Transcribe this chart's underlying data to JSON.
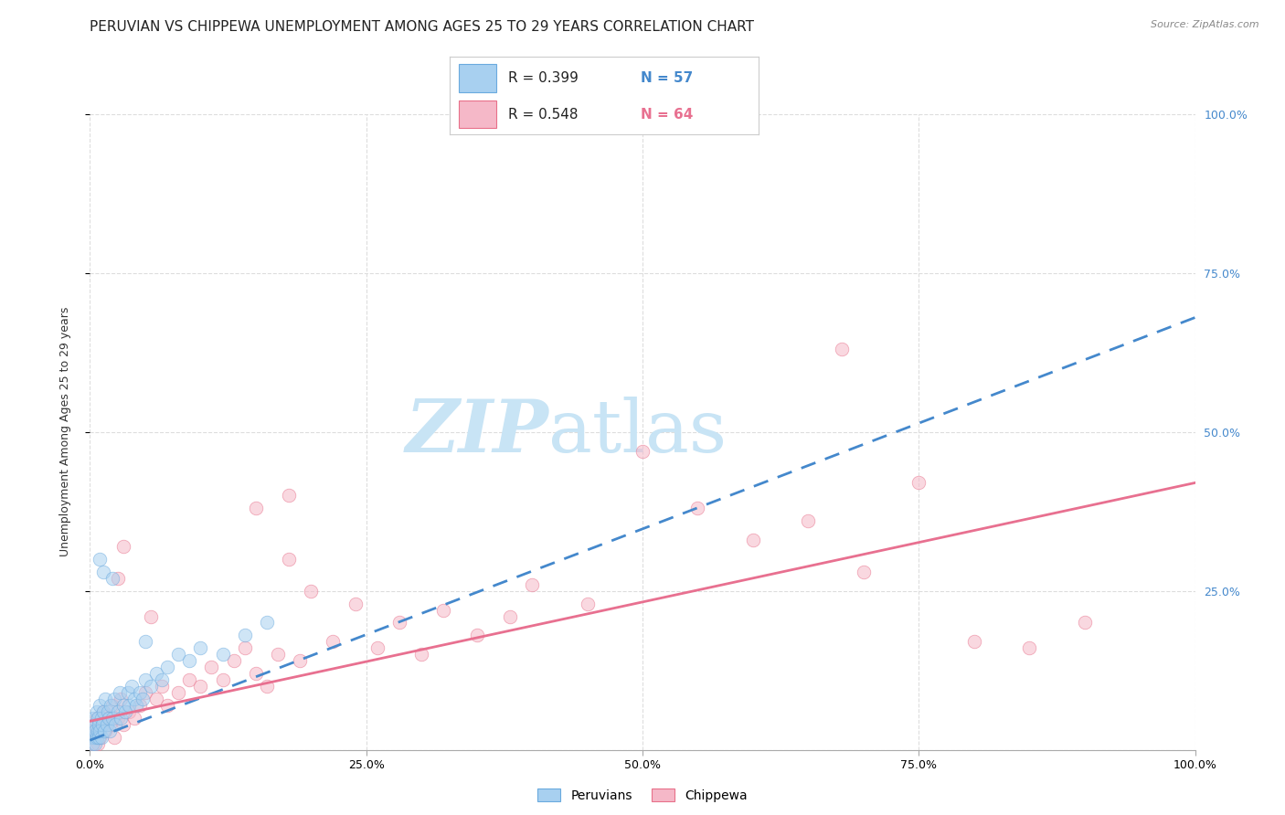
{
  "title": "PERUVIAN VS CHIPPEWA UNEMPLOYMENT AMONG AGES 25 TO 29 YEARS CORRELATION CHART",
  "source": "Source: ZipAtlas.com",
  "ylabel": "Unemployment Among Ages 25 to 29 years",
  "peruvian_color": "#A8D0F0",
  "peruvian_edge_color": "#6AAADE",
  "chippewa_color": "#F5B8C8",
  "chippewa_edge_color": "#E8708A",
  "trend_peruvian_color": "#4488CC",
  "trend_chippewa_color": "#E87090",
  "watermark_color": "#C8E4F5",
  "R_peruvian": 0.399,
  "N_peruvian": 57,
  "R_chippewa": 0.548,
  "N_chippewa": 64,
  "xlim": [
    0,
    1.0
  ],
  "ylim": [
    0,
    1.0
  ],
  "xticks": [
    0.0,
    0.25,
    0.5,
    0.75,
    1.0
  ],
  "yticks": [
    0.0,
    0.25,
    0.5,
    0.75,
    1.0
  ],
  "xticklabels": [
    "0.0%",
    "25.0%",
    "50.0%",
    "75.0%",
    "100.0%"
  ],
  "right_yticklabels": [
    "",
    "25.0%",
    "50.0%",
    "75.0%",
    "100.0%"
  ],
  "background_color": "#FFFFFF",
  "grid_color": "#DDDDDD",
  "title_fontsize": 11,
  "axis_label_fontsize": 9,
  "tick_fontsize": 9,
  "marker_size": 110,
  "marker_alpha": 0.55,
  "peruvian_x": [
    0.001,
    0.002,
    0.003,
    0.003,
    0.004,
    0.004,
    0.005,
    0.005,
    0.006,
    0.006,
    0.007,
    0.007,
    0.008,
    0.008,
    0.009,
    0.009,
    0.01,
    0.01,
    0.011,
    0.012,
    0.013,
    0.014,
    0.015,
    0.016,
    0.017,
    0.018,
    0.019,
    0.02,
    0.022,
    0.023,
    0.025,
    0.027,
    0.028,
    0.03,
    0.032,
    0.034,
    0.035,
    0.038,
    0.04,
    0.042,
    0.045,
    0.048,
    0.05,
    0.055,
    0.06,
    0.065,
    0.07,
    0.08,
    0.09,
    0.1,
    0.12,
    0.14,
    0.16,
    0.009,
    0.012,
    0.02,
    0.05
  ],
  "peruvian_y": [
    0.02,
    0.01,
    0.03,
    0.05,
    0.02,
    0.04,
    0.01,
    0.03,
    0.02,
    0.06,
    0.03,
    0.05,
    0.02,
    0.04,
    0.03,
    0.07,
    0.02,
    0.05,
    0.04,
    0.06,
    0.03,
    0.08,
    0.04,
    0.06,
    0.05,
    0.03,
    0.07,
    0.05,
    0.08,
    0.04,
    0.06,
    0.09,
    0.05,
    0.07,
    0.06,
    0.09,
    0.07,
    0.1,
    0.08,
    0.07,
    0.09,
    0.08,
    0.11,
    0.1,
    0.12,
    0.11,
    0.13,
    0.15,
    0.14,
    0.16,
    0.15,
    0.18,
    0.2,
    0.3,
    0.28,
    0.27,
    0.17
  ],
  "chippewa_x": [
    0.001,
    0.002,
    0.003,
    0.004,
    0.005,
    0.006,
    0.007,
    0.008,
    0.009,
    0.01,
    0.012,
    0.014,
    0.016,
    0.018,
    0.02,
    0.022,
    0.025,
    0.028,
    0.03,
    0.035,
    0.04,
    0.045,
    0.05,
    0.055,
    0.06,
    0.065,
    0.07,
    0.08,
    0.09,
    0.1,
    0.11,
    0.12,
    0.13,
    0.14,
    0.15,
    0.16,
    0.17,
    0.18,
    0.19,
    0.2,
    0.22,
    0.24,
    0.26,
    0.28,
    0.3,
    0.32,
    0.35,
    0.38,
    0.4,
    0.45,
    0.5,
    0.55,
    0.6,
    0.65,
    0.7,
    0.75,
    0.8,
    0.85,
    0.9,
    0.025,
    0.03,
    0.15,
    0.18,
    0.68
  ],
  "chippewa_y": [
    0.02,
    0.03,
    0.01,
    0.04,
    0.02,
    0.05,
    0.01,
    0.03,
    0.02,
    0.04,
    0.06,
    0.03,
    0.05,
    0.04,
    0.07,
    0.02,
    0.05,
    0.08,
    0.04,
    0.06,
    0.05,
    0.07,
    0.09,
    0.21,
    0.08,
    0.1,
    0.07,
    0.09,
    0.11,
    0.1,
    0.13,
    0.11,
    0.14,
    0.16,
    0.12,
    0.1,
    0.15,
    0.3,
    0.14,
    0.25,
    0.17,
    0.23,
    0.16,
    0.2,
    0.15,
    0.22,
    0.18,
    0.21,
    0.26,
    0.23,
    0.47,
    0.38,
    0.33,
    0.36,
    0.28,
    0.42,
    0.17,
    0.16,
    0.2,
    0.27,
    0.32,
    0.38,
    0.4,
    0.63
  ],
  "trend_peruvian_x0": 0.0,
  "trend_peruvian_y0": 0.015,
  "trend_peruvian_x1": 1.0,
  "trend_peruvian_y1": 0.68,
  "trend_chippewa_x0": 0.0,
  "trend_chippewa_y0": 0.045,
  "trend_chippewa_x1": 1.0,
  "trend_chippewa_y1": 0.42
}
